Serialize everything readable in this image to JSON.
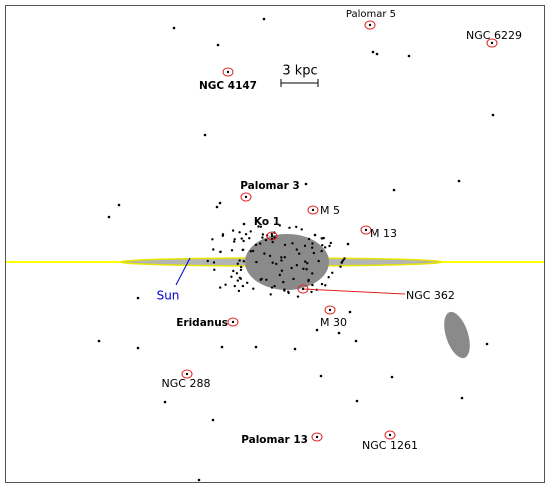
{
  "scale_label": "3 kpc",
  "sun_label": "Sun",
  "clusters": [
    "Palomar 5",
    "NGC 6229",
    "NGC 4147",
    "Palomar 3",
    "M 5",
    "Ko 1",
    "M 13",
    "NGC 362",
    "Eridanus",
    "M 30",
    "NGC 288",
    "Palomar 13",
    "NGC 1261"
  ]
}
